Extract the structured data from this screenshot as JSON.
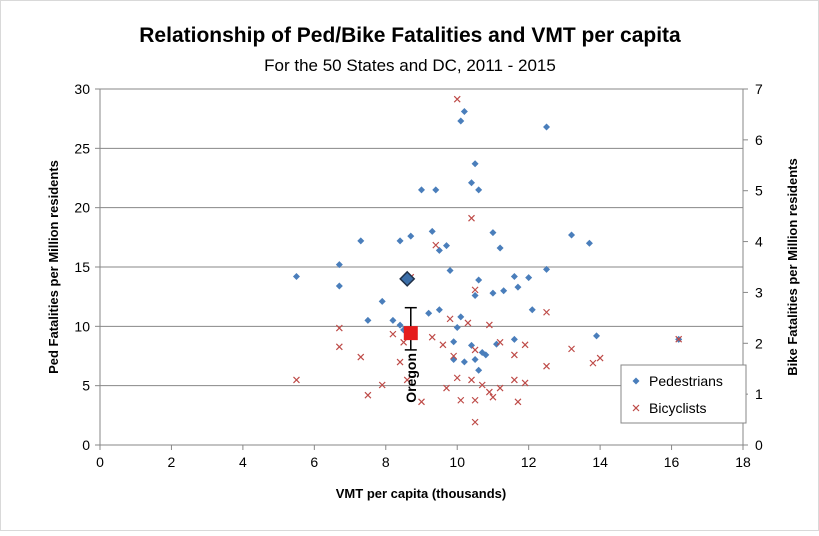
{
  "chart_data": {
    "type": "scatter",
    "title": "Relationship of Ped/Bike Fatalities and VMT per capita",
    "subtitle": "For the 50 States and DC, 2011 - 2015",
    "x_label": "VMT per capita (thousands)",
    "y_label": "Ped Fatalities per Million residents",
    "y2_label": "Bike Fatalities per Million residents",
    "xlim": [
      0,
      18
    ],
    "xticks": [
      0,
      2,
      4,
      6,
      8,
      10,
      12,
      14,
      16,
      18
    ],
    "ylim": [
      0,
      30
    ],
    "yticks": [
      0,
      5,
      10,
      15,
      20,
      25,
      30
    ],
    "y2lim": [
      0,
      7
    ],
    "y2ticks": [
      0,
      1,
      2,
      3,
      4,
      5,
      6,
      7
    ],
    "grid": true,
    "legend": "lower right",
    "series": [
      {
        "name": "Pedestrians",
        "color": "#4a7ebb",
        "marker": "diamond",
        "axis": "y",
        "x": [
          5.5,
          6.7,
          6.7,
          7.3,
          7.5,
          7.9,
          8.2,
          8.4,
          8.7,
          8.4,
          8.5,
          9.0,
          9.4,
          9.3,
          9.7,
          9.5,
          9.8,
          10.1,
          10.2,
          10.4,
          10.5,
          10.6,
          11.0,
          11.2,
          12.5,
          13.2,
          13.7,
          10.5,
          10.6,
          11.0,
          11.3,
          11.6,
          11.7,
          12.0,
          12.5,
          9.2,
          9.5,
          10.1,
          9.9,
          10.0,
          10.4,
          10.8,
          11.1,
          11.6,
          12.1,
          13.9,
          9.9,
          10.2,
          10.5,
          10.6,
          10.7,
          16.2
        ],
        "values": [
          14.2,
          15.2,
          13.4,
          17.2,
          10.5,
          12.1,
          10.5,
          17.2,
          17.6,
          10.1,
          9.7,
          21.5,
          21.5,
          18.0,
          16.8,
          16.4,
          14.7,
          27.3,
          28.1,
          22.1,
          23.7,
          21.5,
          17.9,
          16.6,
          26.8,
          17.7,
          17.0,
          12.6,
          13.9,
          12.8,
          13.0,
          14.2,
          13.3,
          14.1,
          14.8,
          11.1,
          11.4,
          10.8,
          8.7,
          9.9,
          8.4,
          7.6,
          8.5,
          8.9,
          11.4,
          9.2,
          7.2,
          7.0,
          7.2,
          6.3,
          7.8,
          8.9
        ]
      },
      {
        "name": "Bicyclists",
        "color": "#be4b48",
        "marker": "x",
        "axis": "y2",
        "x": [
          5.5,
          6.7,
          6.7,
          7.3,
          7.5,
          7.9,
          8.2,
          8.4,
          8.5,
          8.6,
          8.7,
          9.0,
          9.3,
          9.4,
          9.7,
          9.8,
          10.0,
          10.0,
          10.1,
          10.3,
          10.4,
          10.5,
          10.5,
          10.5,
          10.5,
          10.4,
          10.7,
          10.9,
          10.9,
          11.0,
          11.2,
          11.2,
          11.6,
          11.6,
          11.7,
          11.9,
          11.9,
          12.5,
          12.5,
          13.2,
          13.8,
          14.0,
          16.2,
          9.6,
          9.9
        ],
        "values": [
          1.28,
          2.3,
          1.93,
          1.73,
          0.98,
          1.18,
          2.18,
          1.63,
          2.02,
          1.28,
          3.3,
          0.85,
          2.12,
          3.93,
          1.12,
          2.48,
          1.32,
          6.8,
          0.88,
          2.4,
          4.46,
          3.05,
          1.87,
          0.88,
          0.45,
          1.28,
          1.18,
          1.04,
          2.36,
          0.94,
          1.12,
          2.02,
          1.77,
          1.28,
          0.85,
          1.97,
          1.22,
          2.61,
          1.55,
          1.89,
          1.61,
          1.71,
          2.08,
          1.97,
          1.75
        ]
      }
    ],
    "highlight": {
      "label": "Oregon",
      "ped_x": 8.6,
      "ped_y": 14.0,
      "bike_x": 8.7,
      "bike_y": 2.2,
      "bike_low": 1.87,
      "bike_high": 2.7
    }
  }
}
